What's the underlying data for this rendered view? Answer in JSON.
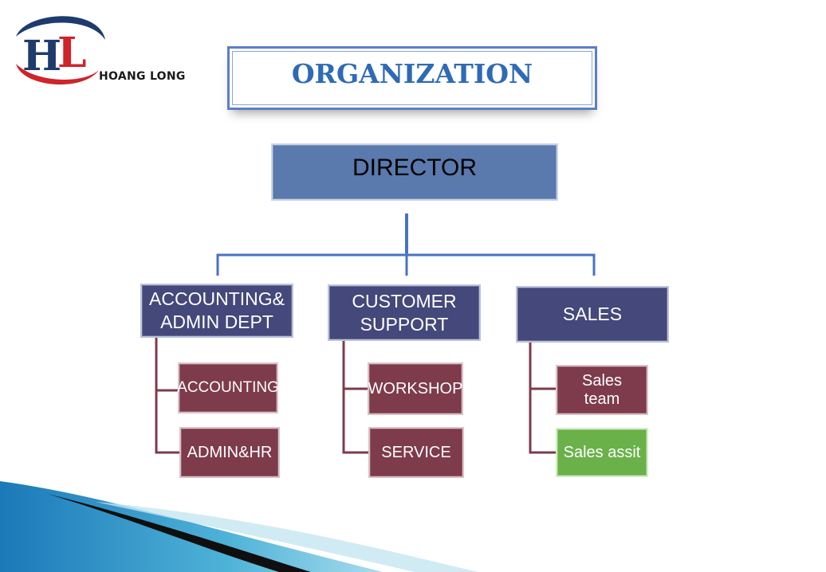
{
  "logo": {
    "monogram": "HL",
    "name": "HOANG LONG",
    "colors": {
      "navy": "#1f3b6e",
      "red": "#d0232a"
    }
  },
  "title": "ORGANIZATION",
  "director": "DIRECTOR",
  "departments": [
    {
      "label_lines": [
        "ACCOUNTING&",
        "ADMIN DEPT"
      ],
      "children": [
        "ACCOUNTING",
        "ADMIN&HR"
      ]
    },
    {
      "label_lines": [
        "CUSTOMER",
        "SUPPORT"
      ],
      "children": [
        "WORKSHOP",
        "SERVICE"
      ]
    },
    {
      "label_lines": [
        "SALES"
      ],
      "children": [
        "Sales team",
        "Sales assit"
      ]
    }
  ],
  "colors": {
    "title_blue": "#2e6ab5",
    "director_fill": "#5a79ac",
    "dept_fill": "#44487a",
    "sub_fill": "#7d3b4c",
    "highlight_fill": "#6ab14a",
    "connector_blue": "#4a72c4",
    "connector_maroon": "#7d3b4c"
  }
}
